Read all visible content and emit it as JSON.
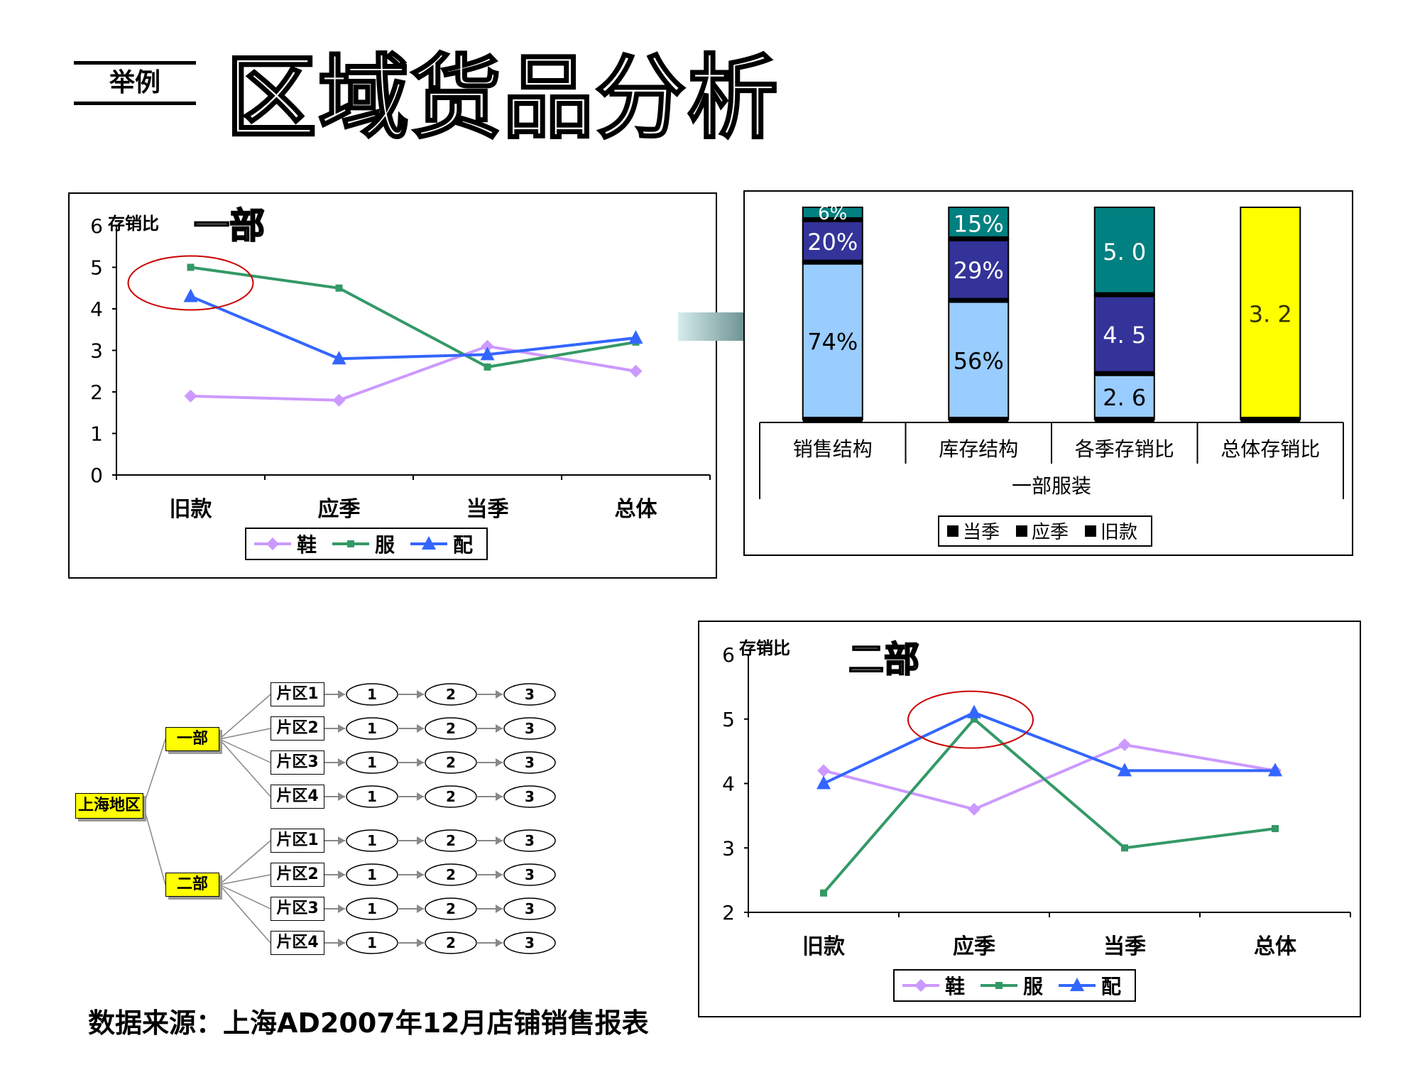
{
  "header": {
    "tag": "举例",
    "title": "区域货品分析"
  },
  "chart_data": [
    {
      "id": "dept1-line",
      "type": "line",
      "title": "一部",
      "ylabel": "存销比",
      "categories": [
        "旧款",
        "应季",
        "当季",
        "总体"
      ],
      "ylim": [
        0,
        6
      ],
      "yticks": [
        0,
        1,
        2,
        3,
        4,
        5,
        6
      ],
      "series": [
        {
          "name": "鞋",
          "values": [
            1.9,
            1.8,
            3.1,
            2.5
          ],
          "color": "#cc99ff",
          "marker": "diamond"
        },
        {
          "name": "服",
          "values": [
            5.0,
            4.5,
            2.6,
            3.2
          ],
          "color": "#339966",
          "marker": "square"
        },
        {
          "name": "配",
          "values": [
            4.3,
            2.8,
            2.9,
            3.3
          ],
          "color": "#3366ff",
          "marker": "triangle"
        }
      ],
      "legend": "bottom",
      "highlight_category": "旧款"
    },
    {
      "id": "dept1-stacked",
      "type": "bar",
      "stacked": true,
      "group_label": "一部服装",
      "categories": [
        "销售结构",
        "库存结构",
        "各季存销比",
        "总体存销比"
      ],
      "series": [
        {
          "name": "旧款",
          "values": [
            74,
            56,
            2.6,
            3.2
          ],
          "labels": [
            "74%",
            "56%",
            "2. 6",
            "3. 2"
          ],
          "color": "#99ccff"
        },
        {
          "name": "应季",
          "values": [
            20,
            29,
            4.5,
            0
          ],
          "labels": [
            "20%",
            "29%",
            "4. 5",
            ""
          ],
          "color": "#333399"
        },
        {
          "name": "当季",
          "values": [
            6,
            15,
            5.0,
            0
          ],
          "labels": [
            "6%",
            "15%",
            "5. 0",
            ""
          ],
          "color": "#008080"
        }
      ],
      "total_bar_color": "#ffff00",
      "legend": [
        "当季",
        "应季",
        "旧款"
      ]
    },
    {
      "id": "dept2-line",
      "type": "line",
      "title": "二部",
      "ylabel": "存销比",
      "categories": [
        "旧款",
        "应季",
        "当季",
        "总体"
      ],
      "ylim": [
        2,
        6
      ],
      "yticks": [
        2,
        3,
        4,
        5,
        6
      ],
      "series": [
        {
          "name": "鞋",
          "values": [
            4.2,
            3.6,
            4.6,
            4.2
          ],
          "color": "#cc99ff",
          "marker": "diamond"
        },
        {
          "name": "服",
          "values": [
            2.3,
            5.0,
            3.0,
            3.3
          ],
          "color": "#339966",
          "marker": "square"
        },
        {
          "name": "配",
          "values": [
            4.0,
            5.1,
            4.2,
            4.2
          ],
          "color": "#3366ff",
          "marker": "triangle"
        }
      ],
      "legend": "bottom",
      "highlight_category": "应季"
    }
  ],
  "tree": {
    "root": "上海地区",
    "departments": [
      {
        "label": "一部",
        "zones": [
          "片区1",
          "片区2",
          "片区3",
          "片区4"
        ]
      },
      {
        "label": "二部",
        "zones": [
          "片区1",
          "片区2",
          "片区3",
          "片区4"
        ]
      }
    ],
    "steps": [
      "1",
      "2",
      "3"
    ],
    "highlight_color": "#ffff00"
  },
  "footer": {
    "source": "数据来源：上海AD2007年12月店铺销售报表"
  }
}
